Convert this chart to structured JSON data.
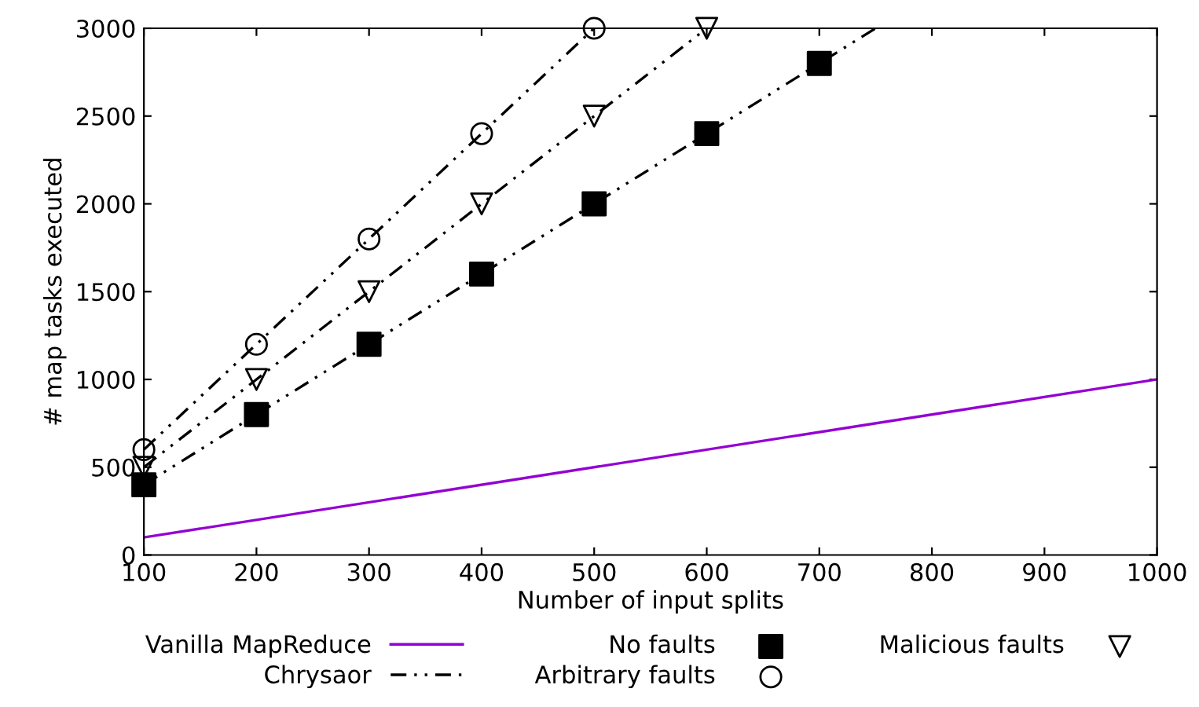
{
  "chart_data": {
    "type": "line",
    "xlabel": "Number of input splits",
    "ylabel": "# map tasks executed",
    "xlim": [
      100,
      1000
    ],
    "ylim": [
      0,
      3000
    ],
    "xticks": [
      100,
      200,
      300,
      400,
      500,
      600,
      700,
      800,
      900,
      1000
    ],
    "yticks": [
      0,
      500,
      1000,
      1500,
      2000,
      2500,
      3000
    ],
    "grid": false,
    "legend": "bottom",
    "series": [
      {
        "name": "Vanilla MapReduce",
        "color": "#9400d3",
        "line_style": "solid",
        "marker": "none",
        "x": [
          100,
          1000
        ],
        "values": [
          100,
          1000
        ]
      },
      {
        "name": "Chrysaor",
        "color": "#000000",
        "line_style": "dashdot",
        "marker": "none",
        "x": [
          100,
          200,
          300,
          400,
          500,
          600,
          700,
          750
        ],
        "values": [
          400,
          800,
          1200,
          1600,
          2000,
          2400,
          2800,
          3000
        ]
      },
      {
        "color": "#000000",
        "line_style": "dashdot",
        "marker": "none",
        "x": [
          100,
          200,
          300,
          400,
          500,
          600
        ],
        "values": [
          500,
          1000,
          1500,
          2000,
          2500,
          3000
        ]
      },
      {
        "color": "#000000",
        "line_style": "dashdot",
        "marker": "none",
        "x": [
          100,
          200,
          300,
          400,
          500
        ],
        "values": [
          600,
          1200,
          1800,
          2400,
          3000
        ]
      },
      {
        "name": "No faults",
        "type": "scatter",
        "color": "#000000",
        "marker": "square",
        "x": [
          100,
          200,
          300,
          400,
          500,
          600,
          700
        ],
        "values": [
          400,
          800,
          1200,
          1600,
          2000,
          2400,
          2800
        ]
      },
      {
        "name": "Arbitrary faults",
        "type": "scatter",
        "color": "#000000",
        "marker": "circle",
        "x": [
          100,
          200,
          300,
          400,
          500
        ],
        "values": [
          600,
          1200,
          1800,
          2400,
          3000
        ]
      },
      {
        "name": "Malicious faults",
        "type": "scatter",
        "color": "#000000",
        "marker": "triangle",
        "x": [
          100,
          200,
          300,
          400,
          500,
          600
        ],
        "values": [
          500,
          1000,
          1500,
          2000,
          2500,
          3000
        ]
      }
    ]
  }
}
